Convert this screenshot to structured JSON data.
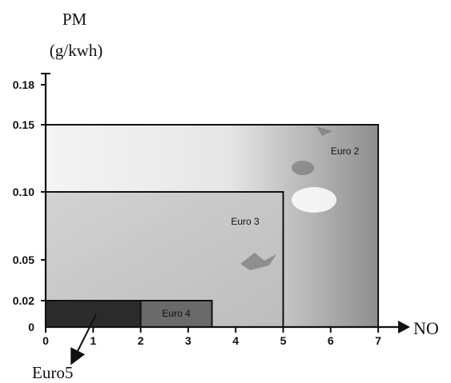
{
  "chart_data": {
    "type": "area",
    "ylabel_line1": "PM",
    "ylabel_line2": "(g/kwh)",
    "xlabel": "NO",
    "xlim": [
      0,
      7.5
    ],
    "ylim": [
      0,
      0.18
    ],
    "x_ticks": [
      {
        "value": 0,
        "label": "0"
      },
      {
        "value": 1,
        "label": "1"
      },
      {
        "value": 2,
        "label": "2"
      },
      {
        "value": 3,
        "label": "3"
      },
      {
        "value": 4,
        "label": "4"
      },
      {
        "value": 5,
        "label": "5"
      },
      {
        "value": 6,
        "label": "6"
      },
      {
        "value": 7,
        "label": "7"
      }
    ],
    "y_ticks": [
      {
        "value": 0,
        "label": "0"
      },
      {
        "value": 0.02,
        "label": "0.02"
      },
      {
        "value": 0.05,
        "label": "0.05"
      },
      {
        "value": 0.1,
        "label": "0.10"
      },
      {
        "value": 0.15,
        "label": "0.15"
      },
      {
        "value": 0.18,
        "label": "0.18"
      }
    ],
    "regions": [
      {
        "name": "Euro 2",
        "x_max": 7.0,
        "y_max": 0.15,
        "color": "#ededed",
        "label_at": [
          6.3,
          0.128
        ]
      },
      {
        "name": "Euro 3",
        "x_max": 5.0,
        "y_max": 0.1,
        "color": "#c9c9c9",
        "label_at": [
          4.2,
          0.076
        ]
      },
      {
        "name": "Euro 4",
        "x_max": 3.5,
        "y_max": 0.02,
        "color": "#6a6a6a",
        "label_at": [
          2.75,
          0.008
        ]
      },
      {
        "name": "Euro5",
        "x_max": 2.0,
        "y_max": 0.02,
        "color": "#2b2b2b",
        "label_at": null
      }
    ],
    "euro5_label": "Euro5",
    "grid": false
  }
}
